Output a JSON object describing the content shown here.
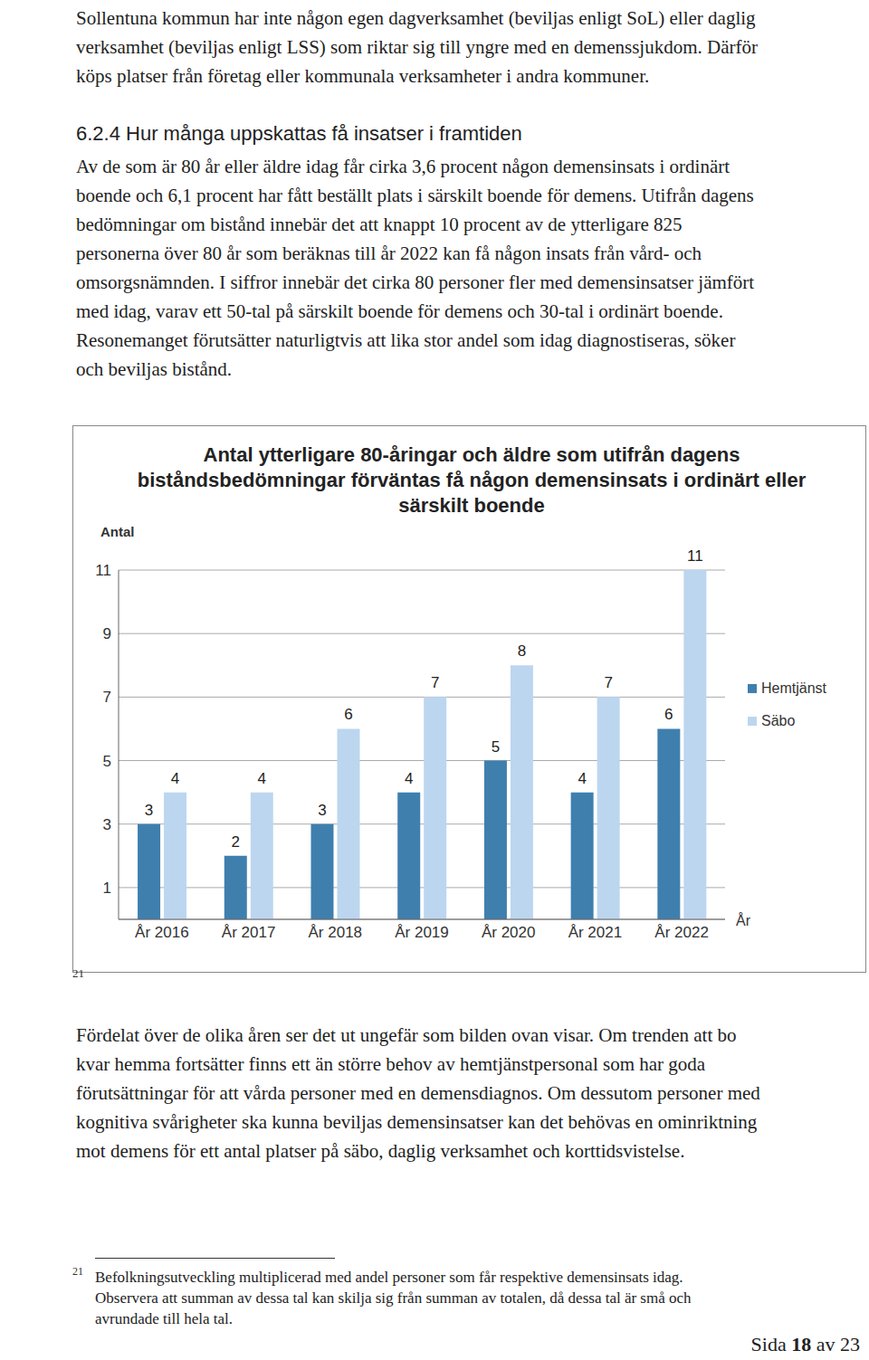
{
  "document": {
    "intro_lines": [
      "Sollentuna kommun har inte någon egen dagverksamhet (beviljas enligt SoL) eller daglig",
      "verksamhet (beviljas enligt LSS) som riktar sig till yngre med en demenssjukdom. Därför",
      "köps platser från företag eller kommunala verksamheter i andra kommuner."
    ],
    "heading": "6.2.4  Hur många uppskattas få insatser i framtiden",
    "section_lines": [
      "Av de som är 80 år eller äldre idag får cirka 3,6 procent någon demensinsats i ordinärt",
      "boende och 6,1 procent har fått beställt plats i särskilt boende för demens. Utifrån dagens",
      "bedömningar om bistånd innebär det att knappt 10 procent av de ytterligare 825",
      "personerna över 80 år som beräknas till år 2022 kan få någon insats från vård- och",
      "omsorgsnämnden. I siffror innebär det cirka 80 personer fler med demensinsatser jämfört",
      "med idag, varav ett 50-tal på särskilt boende för demens och 30-tal i ordinärt boende.",
      "Resonemanget förutsätter naturligtvis att lika stor andel som idag diagnostiseras, söker",
      "och beviljas bistånd."
    ],
    "chart_footnote_ref": "21",
    "after_chart_lines": [
      "Fördelat över de olika åren ser det ut ungefär som bilden ovan visar. Om trenden att bo",
      "kvar hemma fortsätter finns ett än större behov av hemtjänstpersonal som har goda",
      "förutsättningar för att vårda personer med en demensdiagnos. Om dessutom personer med",
      "kognitiva svårigheter ska kunna beviljas demensinsatser kan det behövas en ominriktning",
      "mot demens för ett antal platser på säbo, daglig verksamhet och korttidsvistelse."
    ],
    "footnote": {
      "marker": "21",
      "lines": [
        "Befolkningsutveckling multiplicerad med andel personer som får respektive demensinsats idag.",
        "Observera att summan av dessa tal kan skilja sig från summan av totalen, då dessa tal är små och",
        "avrundade till hela tal."
      ]
    },
    "page": {
      "text_before": "Sida",
      "number": "18",
      "text_after": "av 23"
    }
  },
  "chart_data": {
    "type": "bar",
    "title": "Antal ytterligare 80-åringar och äldre som utifrån dagens biståndsbedömningar förväntas få någon demensinsats i ordinärt eller särskilt boende",
    "x_label": "År",
    "y_label": "Antal",
    "categories": [
      "År 2016",
      "År 2017",
      "År 2018",
      "År 2019",
      "År 2020",
      "År 2021",
      "År 2022"
    ],
    "series": [
      {
        "name": "Hemtjänst",
        "color": "#3f7fae",
        "values": [
          3,
          2,
          3,
          4,
          5,
          4,
          6
        ]
      },
      {
        "name": "Säbo",
        "color": "#bcd6f0",
        "values": [
          4,
          4,
          6,
          7,
          8,
          7,
          11
        ]
      }
    ],
    "ylim": [
      0,
      11
    ],
    "yticks": [
      1,
      3,
      5,
      7,
      9,
      11
    ],
    "grid": true,
    "legend": "right",
    "data_labels": true
  }
}
